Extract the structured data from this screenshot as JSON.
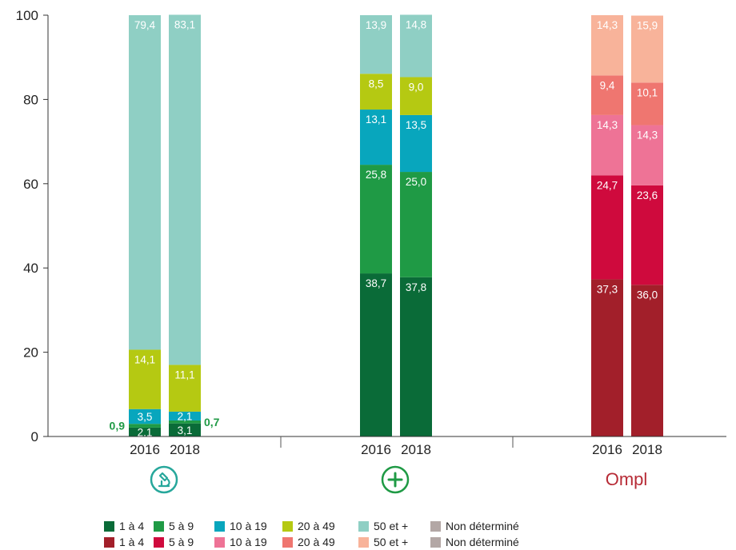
{
  "chart_data": {
    "type": "bar",
    "stacked": true,
    "ylim": [
      0,
      100
    ],
    "yticks": [
      0,
      20,
      40,
      60,
      80,
      100
    ],
    "groups": [
      {
        "logo": "microscope-logo-icon",
        "bars": [
          {
            "year": "2016",
            "segments": [
              2.1,
              0.9,
              3.5,
              14.1,
              79.4
            ],
            "labels": [
              "2,1",
              "0,9",
              "3,5",
              "14,1",
              "79,4"
            ]
          },
          {
            "year": "2018",
            "segments": [
              3.1,
              0.7,
              2.1,
              11.1,
              83.1
            ],
            "labels": [
              "3,1",
              "0,7",
              "2,1",
              "11,1",
              "83,1"
            ]
          }
        ],
        "colors": [
          "#0a6b38",
          "#1f9a45",
          "#08a6bd",
          "#b5c912",
          "#8fcfc4"
        ],
        "outside_segments": [
          1
        ]
      },
      {
        "logo": "plus-logo-icon",
        "bars": [
          {
            "year": "2016",
            "segments": [
              38.7,
              25.8,
              13.1,
              8.5,
              13.9
            ],
            "labels": [
              "38,7",
              "25,8",
              "13,1",
              "8,5",
              "13,9"
            ]
          },
          {
            "year": "2018",
            "segments": [
              37.8,
              25.0,
              13.5,
              9.0,
              14.8
            ],
            "labels": [
              "37,8",
              "25,0",
              "13,5",
              "9,0",
              "14,8"
            ]
          }
        ],
        "colors": [
          "#0a6b38",
          "#1f9a45",
          "#08a6bd",
          "#b5c912",
          "#8fcfc4"
        ],
        "outside_segments": []
      },
      {
        "logo": "ompl-logo",
        "bars": [
          {
            "year": "2016",
            "segments": [
              37.3,
              24.7,
              14.3,
              9.4,
              14.3
            ],
            "labels": [
              "37,3",
              "24,7",
              "14,3",
              "9,4",
              "14,3"
            ]
          },
          {
            "year": "2018",
            "segments": [
              36.0,
              23.6,
              14.3,
              10.1,
              15.9
            ],
            "labels": [
              "36,0",
              "23,6",
              "14,3",
              "10,1",
              "15,9"
            ]
          }
        ],
        "colors": [
          "#a21f2a",
          "#cf0a3d",
          "#ee7396",
          "#ef7670",
          "#f8b39a"
        ],
        "outside_segments": []
      }
    ],
    "legend": {
      "placement": "bottom",
      "rows": [
        [
          {
            "label": "1 à 4",
            "color": "#0a6b38"
          },
          {
            "label": "5 à 9",
            "color": "#1f9a45"
          },
          {
            "label": "10 à 19",
            "color": "#08a6bd"
          },
          {
            "label": "20 à 49",
            "color": "#b5c912"
          },
          {
            "label": "50 et +",
            "color": "#8fcfc4"
          },
          {
            "label": "Non déterminé",
            "color": "#b3a7a5"
          }
        ],
        [
          {
            "label": "1 à 4",
            "color": "#a21f2a"
          },
          {
            "label": "5 à 9",
            "color": "#cf0a3d"
          },
          {
            "label": "10 à 19",
            "color": "#ee7396"
          },
          {
            "label": "20 à 49",
            "color": "#ef7670"
          },
          {
            "label": "50 et +",
            "color": "#f8b39a"
          },
          {
            "label": "Non déterminé",
            "color": "#b3a7a5"
          }
        ]
      ]
    }
  },
  "logos": {
    "ompl_text": "Ompl",
    "microscope_color": "#27a79b",
    "plus_color": "#1f9a45"
  }
}
